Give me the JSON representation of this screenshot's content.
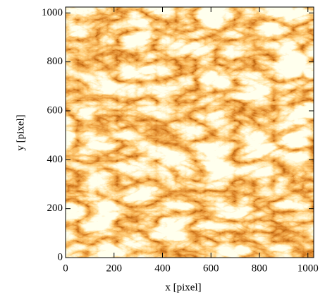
{
  "chart_data": {
    "type": "image",
    "xlabel": "x [pixel]",
    "ylabel": "y [pixel]",
    "xlim": [
      0,
      1024
    ],
    "ylim": [
      0,
      1024
    ],
    "xticks": [
      0,
      200,
      400,
      600,
      800,
      1000
    ],
    "yticks": [
      0,
      200,
      400,
      600,
      800,
      1000
    ]
  }
}
